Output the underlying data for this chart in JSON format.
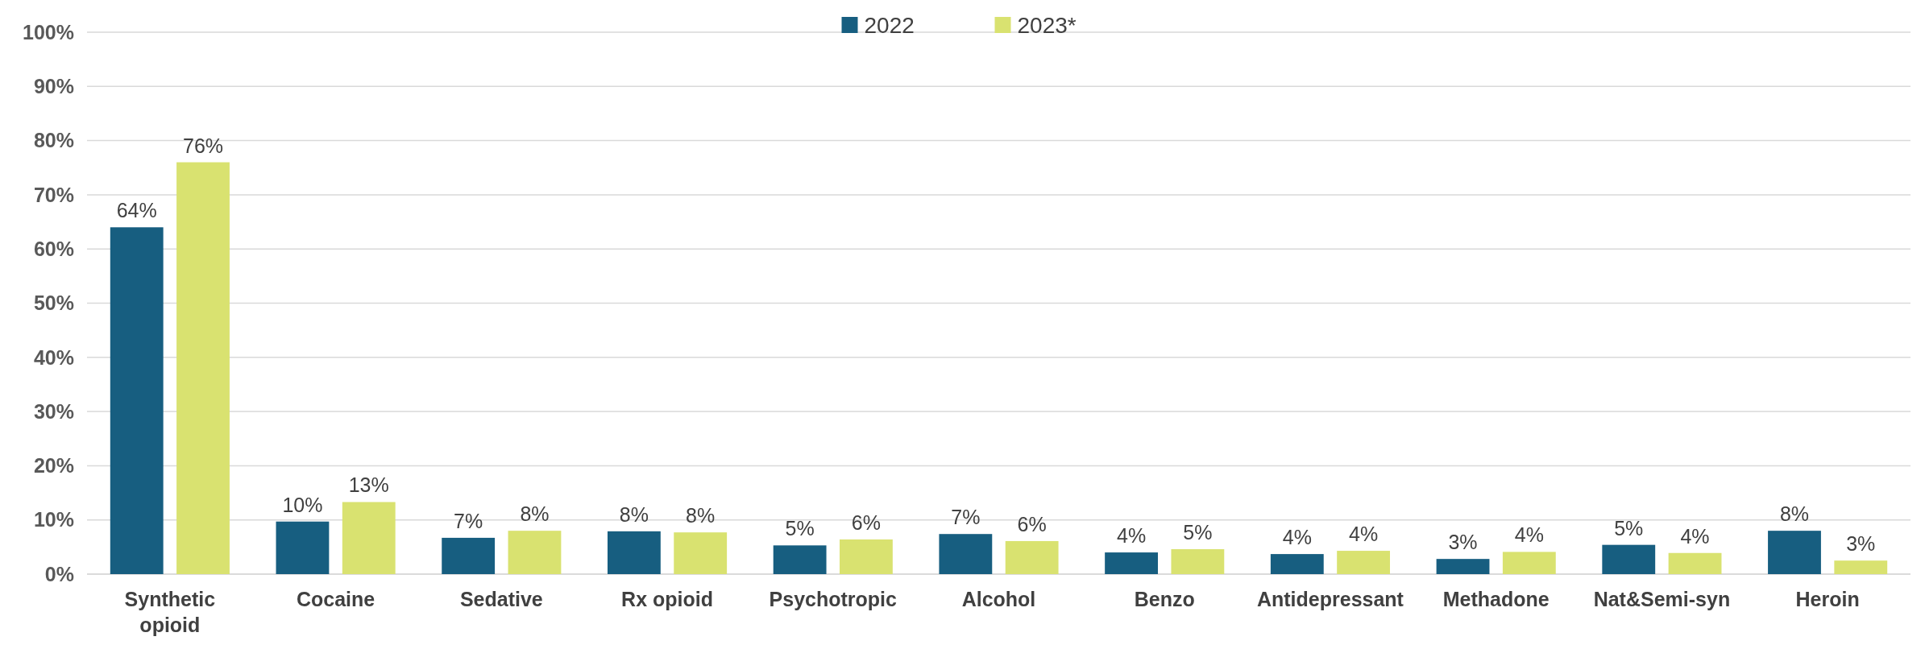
{
  "chart_data": {
    "type": "bar",
    "categories": [
      "Synthetic opioid",
      "Cocaine",
      "Sedative",
      "Rx opioid",
      "Psychotropic",
      "Alcohol",
      "Benzo",
      "Antidepressant",
      "Methadone",
      "Nat&Semi-syn",
      "Heroin"
    ],
    "series": [
      {
        "name": "2022",
        "color": "#175e80",
        "values": [
          64,
          9.7,
          6.7,
          7.9,
          5.3,
          7.4,
          4.0,
          3.7,
          2.8,
          5.4,
          8.0
        ],
        "value_labels": [
          "64%",
          "10%",
          "7%",
          "8%",
          "5%",
          "7%",
          "4%",
          "4%",
          "3%",
          "5%",
          "8%"
        ]
      },
      {
        "name": "2023*",
        "color": "#d9e270",
        "values": [
          76,
          13.3,
          8.0,
          7.7,
          6.4,
          6.1,
          4.6,
          4.3,
          4.1,
          3.9,
          2.5
        ],
        "value_labels": [
          "76%",
          "13%",
          "8%",
          "8%",
          "6%",
          "6%",
          "5%",
          "4%",
          "4%",
          "4%",
          "3%"
        ]
      }
    ],
    "ylim": [
      0,
      100
    ],
    "yticks": [
      {
        "value": 0,
        "label": "0%"
      },
      {
        "value": 10,
        "label": "10%"
      },
      {
        "value": 20,
        "label": "20%"
      },
      {
        "value": 30,
        "label": "30%"
      },
      {
        "value": 40,
        "label": "40%"
      },
      {
        "value": 50,
        "label": "50%"
      },
      {
        "value": 60,
        "label": "60%"
      },
      {
        "value": 70,
        "label": "70%"
      },
      {
        "value": 80,
        "label": "80%"
      },
      {
        "value": 90,
        "label": "90%"
      },
      {
        "value": 100,
        "label": "100%"
      }
    ],
    "grid": "y",
    "legend": "top"
  }
}
